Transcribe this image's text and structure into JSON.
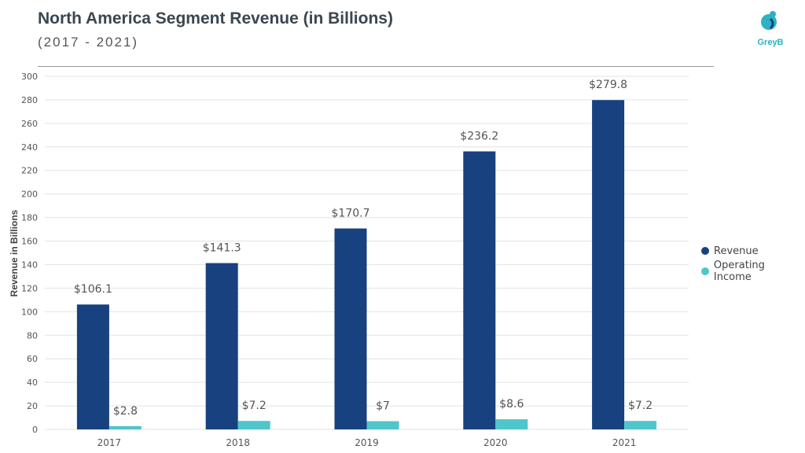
{
  "header": {
    "title": "North America Segment Revenue (in Billions)",
    "subtitle": "(2017 - 2021)"
  },
  "logo": {
    "text": "GreyB",
    "icon": "greyb-logo-icon"
  },
  "colors": {
    "revenue": "#17417f",
    "operating_income": "#4fc6c9",
    "grid": "#e3e3e3",
    "logo": "#2bb3c0"
  },
  "chart_data": {
    "type": "bar",
    "categories": [
      "2017",
      "2018",
      "2019",
      "2020",
      "2021"
    ],
    "series": [
      {
        "name": "Revenue",
        "values": [
          106.1,
          141.3,
          170.7,
          236.2,
          279.8
        ],
        "labels": [
          "$106.1",
          "$141.3",
          "$170.7",
          "$236.2",
          "$279.8"
        ]
      },
      {
        "name": "Operating Income",
        "values": [
          2.8,
          7.2,
          7,
          8.6,
          7.2
        ],
        "labels": [
          "$2.8",
          "$7.2",
          "$7",
          "$8.6",
          "$7.2"
        ]
      }
    ],
    "ylabel": "Revenue in Billions",
    "ylim": [
      0,
      300
    ],
    "yticks": [
      "0",
      "20",
      "40",
      "60",
      "80",
      "100",
      "120",
      "140",
      "160",
      "180",
      "200",
      "220",
      "240",
      "260",
      "280",
      "300"
    ],
    "grid": true,
    "legend_position": "right"
  }
}
